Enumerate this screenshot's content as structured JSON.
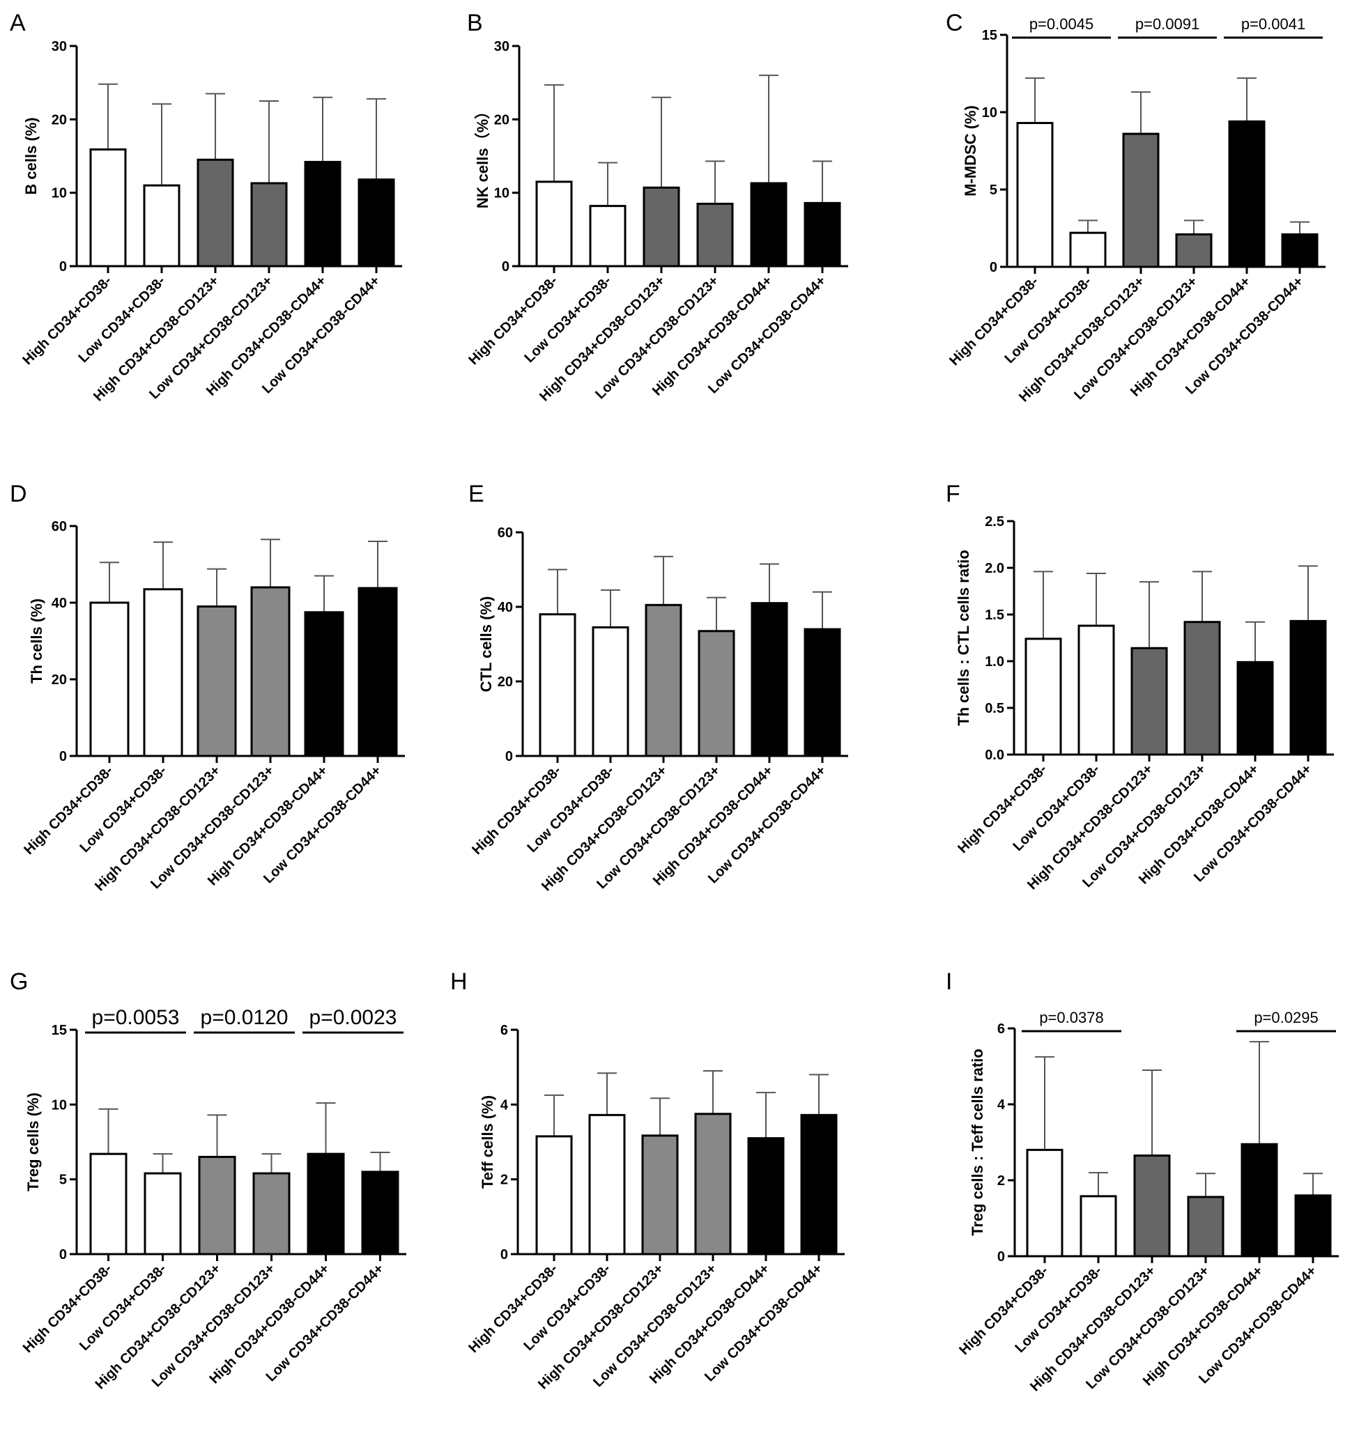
{
  "chart_data": [
    {
      "type": "bar",
      "panel": "A",
      "ylabel": "B cells (%)",
      "categories": [
        "High CD34+CD38-",
        "Low CD34+CD38-",
        "High CD34+CD38-CD123+",
        "Low CD34+CD38-CD123+",
        "High CD34+CD38-CD44+",
        "Low CD34+CD38-CD44+"
      ],
      "values": [
        15.9,
        11.0,
        14.5,
        11.3,
        14.2,
        11.8
      ],
      "errors": [
        8.9,
        11.1,
        9.0,
        11.2,
        8.8,
        11.0
      ],
      "ylim": [
        0,
        30
      ],
      "yticks": [
        "0",
        "10",
        "20",
        "30"
      ],
      "colors": [
        "#ffffff",
        "#ffffff",
        "#666666",
        "#666666",
        "#000000",
        "#000000"
      ],
      "pvalues": []
    },
    {
      "type": "bar",
      "panel": "B",
      "ylabel": "NK cells（%）",
      "categories": [
        "High CD34+CD38-",
        "Low CD34+CD38-",
        "High CD34+CD38-CD123+",
        "Low CD34+CD38-CD123+",
        "High CD34+CD38-CD44+",
        "Low CD34+CD38-CD44+"
      ],
      "values": [
        11.5,
        8.2,
        10.7,
        8.5,
        11.3,
        8.6
      ],
      "errors": [
        13.2,
        5.9,
        12.3,
        5.8,
        14.7,
        5.7
      ],
      "ylim": [
        0,
        30
      ],
      "yticks": [
        "0",
        "10",
        "20",
        "30"
      ],
      "colors": [
        "#ffffff",
        "#ffffff",
        "#666666",
        "#666666",
        "#000000",
        "#000000"
      ],
      "pvalues": []
    },
    {
      "type": "bar",
      "panel": "C",
      "ylabel": "M-MDSC (%)",
      "categories": [
        "High CD34+CD38-",
        "Low CD34+CD38-",
        "High CD34+CD38-CD123+",
        "Low CD34+CD38-CD123+",
        "High CD34+CD38-CD44+",
        "Low CD34+CD38-CD44+"
      ],
      "values": [
        9.3,
        2.2,
        8.6,
        2.1,
        9.4,
        2.1
      ],
      "errors": [
        2.9,
        0.8,
        2.7,
        0.9,
        2.8,
        0.8
      ],
      "ylim": [
        0,
        15
      ],
      "yticks": [
        "0",
        "5",
        "10",
        "15"
      ],
      "colors": [
        "#ffffff",
        "#ffffff",
        "#666666",
        "#666666",
        "#000000",
        "#000000"
      ],
      "pvalues": [
        {
          "from": 0,
          "to": 1,
          "label": "p=0.0045"
        },
        {
          "from": 2,
          "to": 3,
          "label": "p=0.0091"
        },
        {
          "from": 4,
          "to": 5,
          "label": "p=0.0041"
        }
      ]
    },
    {
      "type": "bar",
      "panel": "D",
      "ylabel": "Th cells (%)",
      "categories": [
        "High CD34+CD38-",
        "Low CD34+CD38-",
        "High CD34+CD38-CD123+",
        "Low CD34+CD38-CD123+",
        "High CD34+CD38-CD44+",
        "Low CD34+CD38-CD44+"
      ],
      "values": [
        40.0,
        43.5,
        39.0,
        44.0,
        37.5,
        43.8
      ],
      "errors": [
        10.5,
        12.3,
        9.8,
        12.5,
        9.5,
        12.2
      ],
      "ylim": [
        0,
        60
      ],
      "yticks": [
        "0",
        "20",
        "40",
        "60"
      ],
      "colors": [
        "#ffffff",
        "#ffffff",
        "#888888",
        "#888888",
        "#000000",
        "#000000"
      ],
      "pvalues": []
    },
    {
      "type": "bar",
      "panel": "E",
      "ylabel": "CTL cells (%)",
      "categories": [
        "High CD34+CD38-",
        "Low CD34+CD38-",
        "High CD34+CD38-CD123+",
        "Low CD34+CD38-CD123+",
        "High CD34+CD38-CD44+",
        "Low CD34+CD38-CD44+"
      ],
      "values": [
        38.0,
        34.5,
        40.5,
        33.5,
        41.0,
        34.0
      ],
      "errors": [
        12.0,
        10.0,
        13.0,
        9.0,
        10.5,
        10.0
      ],
      "ylim": [
        0,
        60
      ],
      "yticks": [
        "0",
        "20",
        "40",
        "60"
      ],
      "colors": [
        "#ffffff",
        "#ffffff",
        "#888888",
        "#888888",
        "#000000",
        "#000000"
      ],
      "pvalues": []
    },
    {
      "type": "bar",
      "panel": "F",
      "ylabel": "Th cells : CTL cells ratio",
      "categories": [
        "High CD34+CD38-",
        "Low CD34+CD38-",
        "High CD34+CD38-CD123+",
        "Low CD34+CD38-CD123+",
        "High CD34+CD38-CD44+",
        "Low CD34+CD38-CD44+"
      ],
      "values": [
        1.24,
        1.38,
        1.14,
        1.42,
        0.99,
        1.43
      ],
      "errors": [
        0.72,
        0.56,
        0.71,
        0.54,
        0.43,
        0.59
      ],
      "ylim": [
        0,
        2.5
      ],
      "yticks": [
        "0.0",
        "0.5",
        "1.0",
        "1.5",
        "2.0",
        "2.5"
      ],
      "colors": [
        "#ffffff",
        "#ffffff",
        "#666666",
        "#666666",
        "#000000",
        "#000000"
      ],
      "pvalues": []
    },
    {
      "type": "bar",
      "panel": "G",
      "ylabel": "Treg cells (%)",
      "categories": [
        "High CD34+CD38-",
        "Low CD34+CD38-",
        "High CD34+CD38-CD123+",
        "Low CD34+CD38-CD123+",
        "High CD34+CD38-CD44+",
        "Low CD34+CD38-CD44+"
      ],
      "values": [
        6.7,
        5.4,
        6.5,
        5.4,
        6.7,
        5.5
      ],
      "errors": [
        3.0,
        1.3,
        2.8,
        1.3,
        3.4,
        1.3
      ],
      "ylim": [
        0,
        15
      ],
      "yticks": [
        "0",
        "5",
        "10",
        "15"
      ],
      "colors": [
        "#ffffff",
        "#ffffff",
        "#888888",
        "#888888",
        "#000000",
        "#000000"
      ],
      "pvalues": [
        {
          "from": 0,
          "to": 1,
          "label": "p=0.0053"
        },
        {
          "from": 2,
          "to": 3,
          "label": "p=0.0120"
        },
        {
          "from": 4,
          "to": 5,
          "label": "p=0.0023"
        }
      ]
    },
    {
      "type": "bar",
      "panel": "H",
      "ylabel": "Teff cells (%)",
      "categories": [
        "High CD34+CD38-",
        "Low CD34+CD38-",
        "High CD34+CD38-CD123+",
        "Low CD34+CD38-CD123+",
        "High CD34+CD38-CD44+",
        "Low CD34+CD38-CD44+"
      ],
      "values": [
        3.15,
        3.72,
        3.17,
        3.75,
        3.1,
        3.72
      ],
      "errors": [
        1.1,
        1.12,
        1.0,
        1.15,
        1.22,
        1.08
      ],
      "ylim": [
        0,
        6
      ],
      "yticks": [
        "0",
        "2",
        "4",
        "6"
      ],
      "colors": [
        "#ffffff",
        "#ffffff",
        "#888888",
        "#888888",
        "#000000",
        "#000000"
      ],
      "pvalues": []
    },
    {
      "type": "bar",
      "panel": "I",
      "ylabel": "Treg cells : Teff cells ratio",
      "categories": [
        "High CD34+CD38-",
        "Low CD34+CD38-",
        "High CD34+CD38-CD123+",
        "Low CD34+CD38-CD123+",
        "High CD34+CD38-CD44+",
        "Low CD34+CD38-CD44+"
      ],
      "values": [
        2.8,
        1.58,
        2.65,
        1.56,
        2.95,
        1.6
      ],
      "errors": [
        2.45,
        0.62,
        2.25,
        0.62,
        2.7,
        0.58
      ],
      "ylim": [
        0,
        6
      ],
      "yticks": [
        "0",
        "2",
        "4",
        "6"
      ],
      "colors": [
        "#ffffff",
        "#ffffff",
        "#666666",
        "#666666",
        "#000000",
        "#000000"
      ],
      "pvalues": [
        {
          "from": 0,
          "to": 1,
          "label": "p=0.0378"
        },
        {
          "from": 4,
          "to": 5,
          "label": "p=0.0295"
        }
      ]
    }
  ]
}
